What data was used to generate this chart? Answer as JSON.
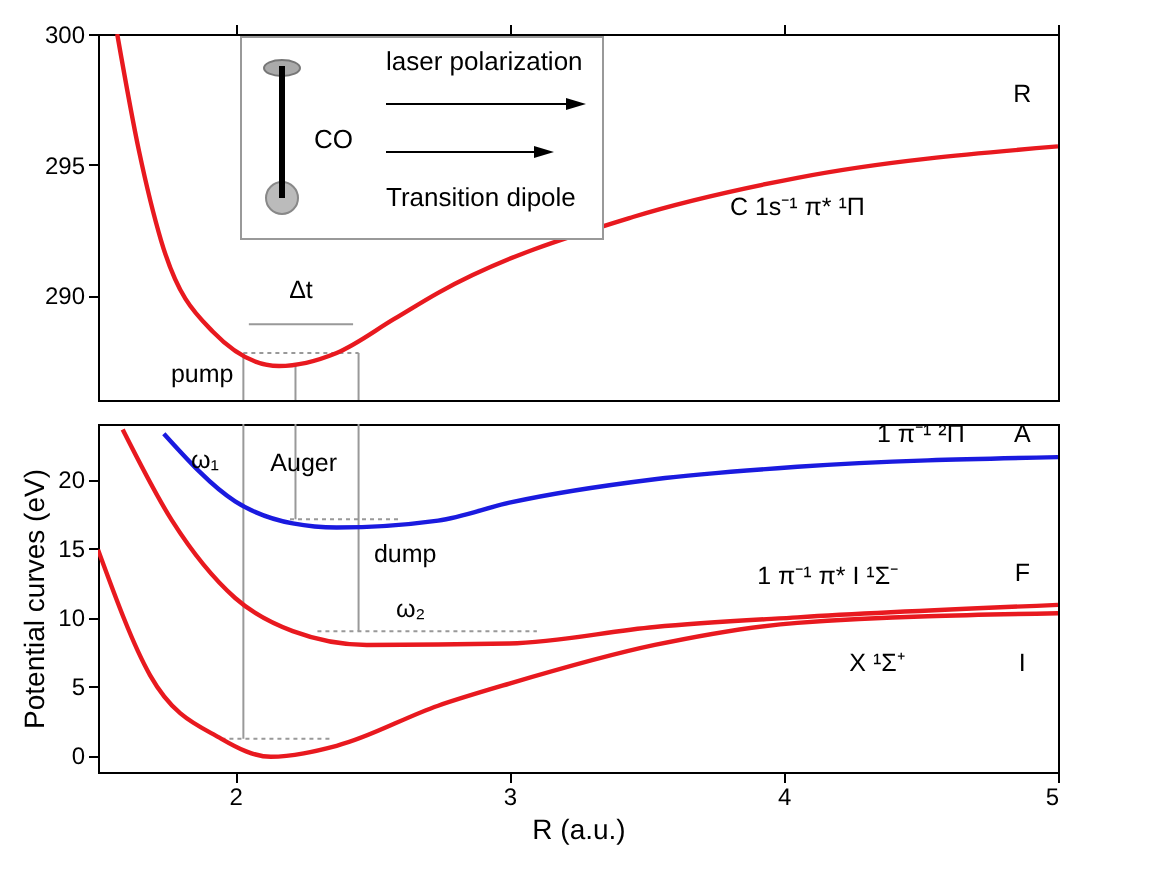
{
  "chart_data": [
    {
      "type": "line",
      "xlim": [
        1.5,
        5
      ],
      "xticks": [
        2,
        3,
        4,
        5
      ],
      "ylim": [
        286,
        300
      ],
      "yticks": [
        290,
        295,
        300
      ],
      "tick_labels": "y",
      "grid": false,
      "marker": "none",
      "series": [
        {
          "color": "#999999",
          "line_style": "dotted",
          "x": [
            2.03,
            2.45
          ],
          "values": [
            287.8,
            287.8
          ]
        },
        {
          "color": "#999999",
          "line_style": "solid",
          "x": [
            2.05,
            2.43
          ],
          "values": [
            288.9,
            288.9
          ]
        },
        {
          "color": "#999999",
          "line_style": "solid",
          "x": [
            2.03,
            2.03
          ],
          "values": [
            286,
            287.8
          ]
        },
        {
          "color": "#999999",
          "line_style": "solid",
          "x": [
            2.22,
            2.22
          ],
          "values": [
            286,
            287.4
          ]
        },
        {
          "color": "#999999",
          "line_style": "solid",
          "x": [
            2.45,
            2.45
          ],
          "values": [
            286,
            287.8
          ]
        },
        {
          "color": "#e8191f",
          "line_style": "solid",
          "x": [
            1.57,
            1.65,
            1.73,
            1.92,
            2.16,
            2.37,
            2.58,
            2.74,
            3.45,
            4.05,
            5
          ],
          "values": [
            300,
            295.5,
            292.1,
            288.6,
            287.3,
            287.8,
            289.1,
            290.1,
            293.0,
            294.5,
            295.7
          ]
        }
      ],
      "annotations": [
        "laser  polarization",
        "CO",
        "Transition dipole",
        "R",
        "C 1s⁻¹ π* ¹Π",
        "Δt",
        "pump"
      ]
    },
    {
      "type": "line",
      "xlim": [
        1.5,
        5
      ],
      "xticks": [
        2,
        3,
        4,
        5
      ],
      "ylim": [
        -1.2,
        24
      ],
      "yticks": [
        0,
        5,
        10,
        15,
        20
      ],
      "xlabel": "R (a.u.)",
      "ylabel": "Potential curves (eV)",
      "grid": false,
      "marker": "none",
      "series": [
        {
          "color": "#999999",
          "line_style": "solid",
          "x": [
            2.03,
            2.03
          ],
          "values": [
            1.2,
            24
          ]
        },
        {
          "color": "#999999",
          "line_style": "solid",
          "x": [
            2.22,
            2.22
          ],
          "values": [
            17.1,
            24
          ]
        },
        {
          "color": "#999999",
          "line_style": "solid",
          "x": [
            2.45,
            2.45
          ],
          "values": [
            9,
            24
          ]
        },
        {
          "color": "#999999",
          "line_style": "dotted",
          "x": [
            2.2,
            2.6
          ],
          "values": [
            17.1,
            17.1
          ]
        },
        {
          "color": "#999999",
          "line_style": "dotted",
          "x": [
            2.3,
            3.1
          ],
          "values": [
            9,
            9
          ]
        },
        {
          "color": "#999999",
          "line_style": "dotted",
          "x": [
            1.95,
            2.35
          ],
          "values": [
            1.2,
            1.2
          ]
        },
        {
          "color": "#1a1adf",
          "line_style": "solid",
          "x": [
            1.74,
            2.0,
            2.21,
            2.37,
            2.74,
            3.0,
            3.53,
            4.05,
            5
          ],
          "values": [
            23.3,
            18.4,
            16.8,
            16.5,
            17.0,
            18.3,
            20.0,
            20.9,
            21.6
          ]
        },
        {
          "color": "#e8191f",
          "line_style": "solid",
          "x": [
            1.59,
            1.77,
            2.0,
            2.21,
            2.48,
            3.0,
            3.53,
            4.05,
            5
          ],
          "values": [
            23.6,
            17.0,
            11.4,
            9.0,
            8.0,
            8.1,
            9.3,
            10.0,
            10.9
          ]
        },
        {
          "color": "#e8191f",
          "line_style": "solid",
          "x": [
            1.5,
            1.69,
            1.95,
            2.13,
            2.37,
            2.74,
            3.0,
            3.53,
            4.05,
            5
          ],
          "values": [
            14.9,
            5.8,
            1.2,
            -0.1,
            0.7,
            3.6,
            5.2,
            8.0,
            9.6,
            10.3
          ]
        }
      ],
      "annotations": [
        "A",
        "1 π⁻¹ ²Π",
        "ω₁",
        "Auger",
        "dump",
        "ω₂",
        "F",
        "1 π⁻¹ π* I ¹Σ⁻",
        "I",
        "X ¹Σ⁺"
      ]
    }
  ]
}
